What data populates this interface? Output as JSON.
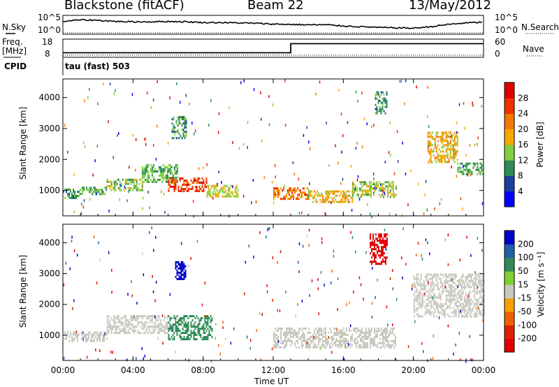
{
  "header": {
    "station": "Blackstone (fitACF)",
    "beam": "Beam 22",
    "date": "13/May/2012"
  },
  "left_labels": {
    "nsky": "N.Sky",
    "freq": "Freq.",
    "freq_unit": "[MHz]",
    "cpid": "CPID"
  },
  "right_labels": {
    "nsearch": "N.Search",
    "nave": "Nave"
  },
  "cpid_value": "tau (fast) 503",
  "colors": {
    "power": [
      "#0000ff",
      "#1a3fa0",
      "#2e8b57",
      "#7fcf3f",
      "#f5a800",
      "#f07800",
      "#f03000",
      "#e00000"
    ],
    "velocity": [
      "#0000c8",
      "#1f5fa8",
      "#2e8b57",
      "#7fd030",
      "#c8c8c0",
      "#f5a000",
      "#f06000",
      "#e02000",
      "#e00000"
    ]
  },
  "chart_data": [
    {
      "type": "line",
      "panel": "noise",
      "left_ticks": [
        "10^5",
        "10^0"
      ],
      "right_ticks": [
        "10^5",
        "10^0"
      ],
      "x": [
        "00:00",
        "01:00",
        "02:00",
        "03:00",
        "04:00",
        "05:00",
        "06:00",
        "07:00",
        "08:00",
        "09:00",
        "10:00",
        "11:00",
        "12:00",
        "13:00",
        "14:00",
        "15:00",
        "16:00",
        "17:00",
        "18:00",
        "19:00",
        "20:00",
        "21:00",
        "22:00",
        "23:00",
        "24:00"
      ],
      "series": [
        {
          "name": "N.Sky",
          "values": [
            3.4,
            3.8,
            3.7,
            3.4,
            3.3,
            3.3,
            3.4,
            3.3,
            3.1,
            3.1,
            3.0,
            2.9,
            2.7,
            2.6,
            2.5,
            2.5,
            2.2,
            2.0,
            1.8,
            1.7,
            1.6,
            2.0,
            2.6,
            3.0,
            3.2
          ]
        }
      ],
      "ylim": [
        0,
        5
      ]
    },
    {
      "type": "line",
      "panel": "frequency",
      "left_ticks": [
        "18",
        "8"
      ],
      "right_ticks": [
        "60",
        "0"
      ],
      "x": [
        "00:00",
        "13:00",
        "13:00",
        "24:00"
      ],
      "series": [
        {
          "name": "Freq.",
          "values": [
            10.5,
            10.5,
            15.5,
            15.5
          ]
        }
      ],
      "ylim": [
        8,
        18
      ]
    },
    {
      "type": "heatmap",
      "title": "Power [dB]",
      "ylabel": "Slant Range [km]",
      "xticks": [
        "00:00",
        "04:00",
        "08:00",
        "12:00",
        "16:00",
        "20:00",
        "00:00"
      ],
      "yticks": [
        "1000",
        "2000",
        "3000",
        "4000"
      ],
      "ylim": [
        180,
        4600
      ],
      "colorbar_ticks": [
        "28",
        "24",
        "20",
        "16",
        "12",
        "8",
        "4"
      ],
      "clim": [
        0,
        32
      ],
      "features": [
        {
          "x": [
            0.0,
            1.0
          ],
          "range": [
            780,
            1060
          ],
          "value": 10
        },
        {
          "x": [
            1.0,
            2.5
          ],
          "range": [
            860,
            1120
          ],
          "value": 12
        },
        {
          "x": [
            2.5,
            4.5
          ],
          "range": [
            1000,
            1380
          ],
          "value": 14
        },
        {
          "x": [
            4.5,
            6.5
          ],
          "range": [
            1250,
            1850
          ],
          "value": 12
        },
        {
          "x": [
            6.0,
            8.2
          ],
          "range": [
            950,
            1420
          ],
          "value": 26
        },
        {
          "x": [
            8.2,
            10.0
          ],
          "range": [
            820,
            1180
          ],
          "value": 16
        },
        {
          "x": [
            6.2,
            7.0
          ],
          "range": [
            2700,
            3400
          ],
          "value": 10
        },
        {
          "x": [
            12.0,
            14.0
          ],
          "range": [
            760,
            1100
          ],
          "value": 22
        },
        {
          "x": [
            14.0,
            16.5
          ],
          "range": [
            600,
            1000
          ],
          "value": 18
        },
        {
          "x": [
            16.5,
            19.0
          ],
          "range": [
            800,
            1300
          ],
          "value": 14
        },
        {
          "x": [
            17.8,
            18.5
          ],
          "range": [
            3500,
            4200
          ],
          "value": 10
        },
        {
          "x": [
            20.8,
            22.5
          ],
          "range": [
            1900,
            2900
          ],
          "value": 18
        },
        {
          "x": [
            22.5,
            24.0
          ],
          "range": [
            1550,
            1900
          ],
          "value": 12
        }
      ]
    },
    {
      "type": "heatmap",
      "title": "Velocity [m s⁻¹]",
      "ylabel": "Slant Range [km]",
      "xlabel": "Time UT",
      "xticks": [
        "00:00",
        "04:00",
        "08:00",
        "12:00",
        "16:00",
        "20:00",
        "00:00"
      ],
      "yticks": [
        "1000",
        "2000",
        "3000",
        "4000"
      ],
      "ylim": [
        180,
        4600
      ],
      "colorbar_ticks": [
        "200",
        "100",
        "50",
        "15",
        "-15",
        "-50",
        "-100",
        "-200"
      ],
      "clim": [
        -250,
        250
      ],
      "features": [
        {
          "x": [
            0.0,
            2.5
          ],
          "range": [
            780,
            1120
          ],
          "value": 0
        },
        {
          "x": [
            2.5,
            6.0
          ],
          "range": [
            1100,
            1650
          ],
          "value": 0
        },
        {
          "x": [
            6.0,
            8.5
          ],
          "range": [
            850,
            1650
          ],
          "value": 40
        },
        {
          "x": [
            6.4,
            7.0
          ],
          "range": [
            2800,
            3400
          ],
          "value": 220
        },
        {
          "x": [
            12.0,
            19.0
          ],
          "range": [
            600,
            1250
          ],
          "value": 0
        },
        {
          "x": [
            17.5,
            18.5
          ],
          "range": [
            3300,
            4300
          ],
          "value": -220
        },
        {
          "x": [
            20.0,
            24.0
          ],
          "range": [
            1600,
            3000
          ],
          "value": 0
        }
      ]
    }
  ]
}
